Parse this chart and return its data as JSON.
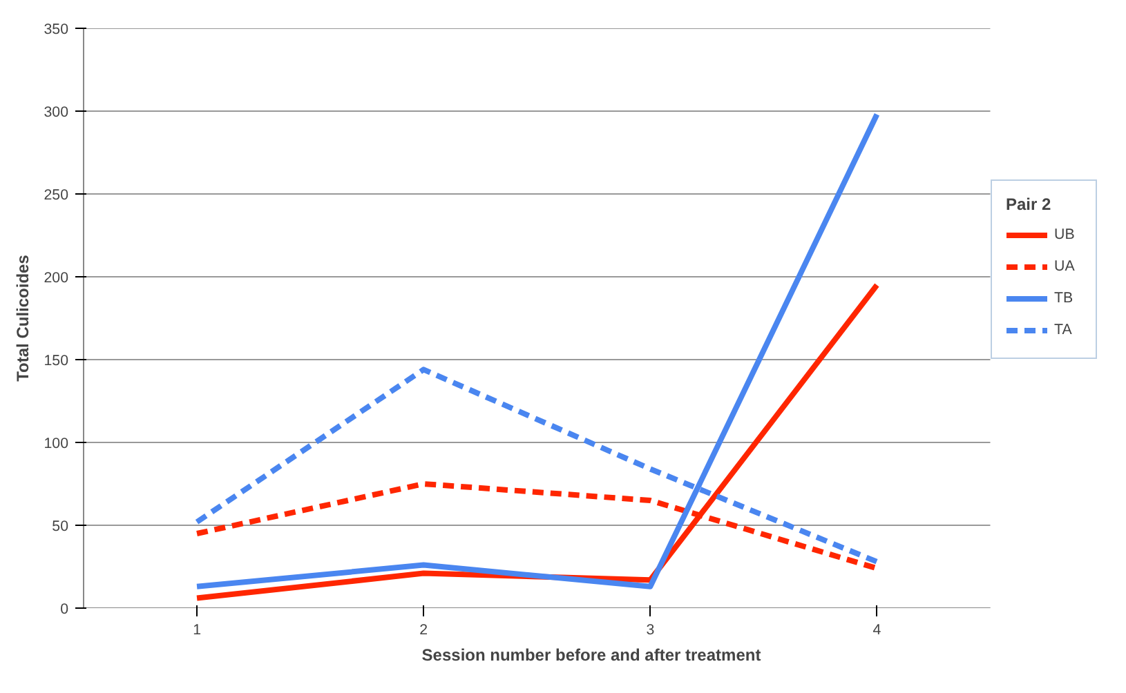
{
  "chart_data": {
    "type": "line",
    "xlabel": "Session number before and after treatment",
    "ylabel": "Total Culicoides",
    "legend_title": "Pair 2",
    "categories": [
      "1",
      "2",
      "3",
      "4"
    ],
    "series": [
      {
        "name": "UB",
        "color": "#ff2600",
        "line_style": "solid",
        "values": [
          6,
          21,
          17,
          195
        ]
      },
      {
        "name": "UA",
        "color": "#ff2600",
        "line_style": "dashed",
        "values": [
          45,
          75,
          65,
          24
        ]
      },
      {
        "name": "TB",
        "color": "#4a86f0",
        "line_style": "solid",
        "values": [
          13,
          26,
          13,
          298
        ]
      },
      {
        "name": "TA",
        "color": "#4a86f0",
        "line_style": "dashed",
        "values": [
          52,
          144,
          84,
          28
        ]
      }
    ],
    "ylim": [
      0,
      350
    ],
    "yticks": [
      0,
      50,
      100,
      150,
      200,
      250,
      300,
      350
    ],
    "grid": "y",
    "legend": "right",
    "marker": "none"
  }
}
